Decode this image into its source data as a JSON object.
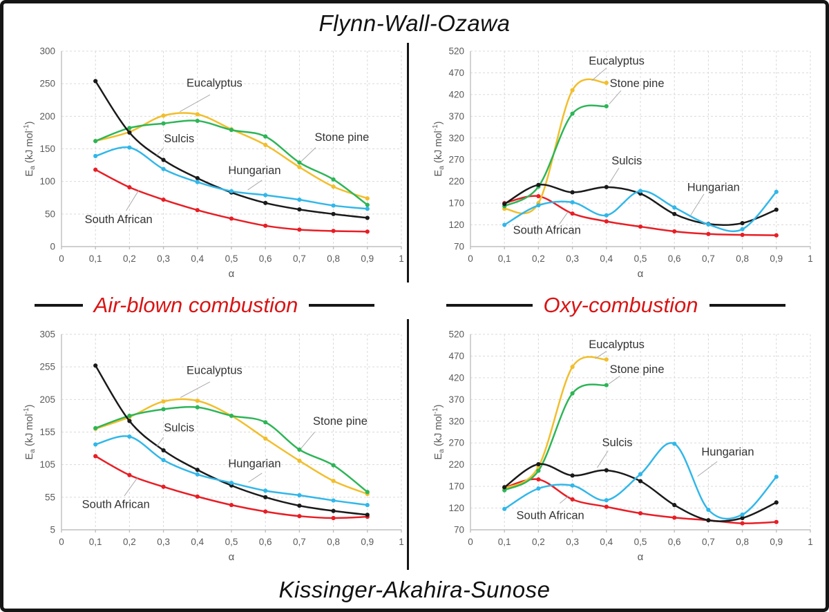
{
  "figure": {
    "top_title": "Flynn-Wall-Ozawa",
    "bottom_title": "Kissinger-Akahira-Sunose",
    "left_condition_label": "Air-blown combustion",
    "right_condition_label": "Oxy-combustion"
  },
  "colors": {
    "border": "#161616",
    "condition_label_red": "#d91414",
    "title_black": "#111111"
  },
  "series_colors": {
    "Eucalyptus": "#F2BE2B",
    "Stone pine": "#2DB557",
    "Sulcis": "#1A1A1A",
    "Hungarian": "#31B7E9",
    "South African": "#E81E25"
  },
  "chart_style": {
    "grid_color": "#d9d9d9",
    "axis_color": "#bfbfbf",
    "tick_color": "#595959",
    "annotation_color": "#333333",
    "leader_color": "#ababab",
    "line_width": 2.5,
    "marker_radius": 3.1
  },
  "chart_data": [
    {
      "id": "fwo-air",
      "type": "line",
      "method": "Flynn-Wall-Ozawa",
      "condition": "Air-blown combustion",
      "xlabel": "α",
      "ylabel_parts": {
        "pre": "E",
        "sub": "a",
        "mid": " (kJ mol",
        "sup": "-1",
        "post": ")"
      },
      "x": [
        0.1,
        0.2,
        0.3,
        0.4,
        0.5,
        0.6,
        0.7,
        0.8,
        0.9
      ],
      "ylim": [
        0,
        300
      ],
      "yticks": [
        0,
        50,
        100,
        150,
        200,
        250,
        300
      ],
      "xticks": {
        "values": [
          0,
          0.1,
          0.2,
          0.3,
          0.4,
          0.5,
          0.6,
          0.7,
          0.8,
          0.9,
          1
        ],
        "labels": [
          "0",
          "0,1",
          "0,2",
          "0,3",
          "0,4",
          "0,5",
          "0,6",
          "0,7",
          "0,8",
          "0,9",
          "1"
        ]
      },
      "series": [
        {
          "name": "South African",
          "values": [
            118,
            91,
            72,
            56,
            43,
            32,
            26,
            24,
            23
          ]
        },
        {
          "name": "Eucalyptus",
          "values": [
            162,
            176,
            201,
            203,
            180,
            156,
            122,
            92,
            74
          ]
        },
        {
          "name": "Stone pine",
          "values": [
            162,
            182,
            189,
            193,
            179,
            169,
            129,
            103,
            64
          ]
        },
        {
          "name": "Sulcis",
          "values": [
            254,
            175,
            133,
            105,
            83,
            67,
            57,
            50,
            44
          ]
        },
        {
          "name": "Hungarian",
          "values": [
            139,
            152,
            119,
            99,
            85,
            79,
            72,
            63,
            58
          ]
        }
      ],
      "annotations": [
        {
          "text": "Eucalyptus",
          "tx": 0.45,
          "ty": 251,
          "line": [
            0.437,
            233,
            0.348,
            207
          ]
        },
        {
          "text": "Sulcis",
          "tx": 0.346,
          "ty": 166,
          "line": [
            0.3,
            151,
            0.28,
            140
          ]
        },
        {
          "text": "Hungarian",
          "tx": 0.568,
          "ty": 117,
          "line": [
            0.59,
            102,
            0.548,
            87
          ]
        },
        {
          "text": "Stone pine",
          "tx": 0.825,
          "ty": 168,
          "line": [
            0.748,
            152,
            0.706,
            131
          ]
        },
        {
          "text": "South African",
          "tx": 0.168,
          "ty": 42,
          "line": [
            0.19,
            55,
            0.228,
            87
          ]
        }
      ]
    },
    {
      "id": "fwo-oxy",
      "type": "line",
      "method": "Flynn-Wall-Ozawa",
      "condition": "Oxy-combustion",
      "xlabel": "α",
      "ylabel_parts": {
        "pre": "E",
        "sub": "a",
        "mid": " (kJ mol",
        "sup": "-1",
        "post": ")"
      },
      "x": [
        0.1,
        0.2,
        0.3,
        0.4,
        0.5,
        0.6,
        0.7,
        0.8,
        0.9
      ],
      "ylim": [
        70,
        520
      ],
      "yticks": [
        70,
        120,
        170,
        220,
        270,
        320,
        370,
        420,
        470,
        520
      ],
      "xticks": {
        "values": [
          0,
          0.1,
          0.2,
          0.3,
          0.4,
          0.5,
          0.6,
          0.7,
          0.8,
          0.9,
          1
        ],
        "labels": [
          "0",
          "0,1",
          "0,2",
          "0,3",
          "0,4",
          "0,5",
          "0,6",
          "0,7",
          "0,8",
          "0,9",
          "1"
        ]
      },
      "series": [
        {
          "name": "South African",
          "values": [
            170,
            186,
            146,
            128,
            116,
            105,
            99,
            97,
            96
          ]
        },
        {
          "name": "Eucalyptus",
          "values": [
            157,
            170,
            430,
            447
          ]
        },
        {
          "name": "Stone pine",
          "values": [
            163,
            208,
            376,
            393
          ]
        },
        {
          "name": "Sulcis",
          "values": [
            168,
            212,
            195,
            207,
            192,
            145,
            122,
            124,
            155
          ]
        },
        {
          "name": "Hungarian",
          "values": [
            120,
            165,
            172,
            142,
            198,
            160,
            121,
            110,
            196
          ]
        }
      ],
      "annotations": [
        {
          "text": "Eucalyptus",
          "tx": 0.43,
          "ty": 498,
          "line": [
            0.4,
            481,
            0.357,
            452
          ]
        },
        {
          "text": "Stone pine",
          "tx": 0.49,
          "ty": 446,
          "line": [
            0.443,
            429,
            0.408,
            398
          ]
        },
        {
          "text": "Sulcis",
          "tx": 0.46,
          "ty": 268,
          "line": [
            0.437,
            251,
            0.408,
            215
          ]
        },
        {
          "text": "Hungarian",
          "tx": 0.715,
          "ty": 207,
          "line": [
            0.687,
            191,
            0.647,
            141
          ]
        },
        {
          "text": "South African",
          "tx": 0.225,
          "ty": 108,
          "line": [
            0.262,
            122,
            0.287,
            150
          ]
        }
      ]
    },
    {
      "id": "kas-air",
      "type": "line",
      "method": "Kissinger-Akahira-Sunose",
      "condition": "Air-blown combustion",
      "xlabel": "α",
      "ylabel_parts": {
        "pre": "E",
        "sub": "a",
        "mid": " (kJ mol",
        "sup": "-1",
        "post": ")"
      },
      "x": [
        0.1,
        0.2,
        0.3,
        0.4,
        0.5,
        0.6,
        0.7,
        0.8,
        0.9
      ],
      "ylim": [
        5,
        305
      ],
      "yticks": [
        5,
        55,
        105,
        155,
        205,
        255,
        305
      ],
      "xticks": {
        "values": [
          0,
          0.1,
          0.2,
          0.3,
          0.4,
          0.5,
          0.6,
          0.7,
          0.8,
          0.9,
          1
        ],
        "labels": [
          "0",
          "0,1",
          "0,2",
          "0,3",
          "0,4",
          "0,5",
          "0,6",
          "0,7",
          "0,8",
          "0,9",
          "1"
        ]
      },
      "series": [
        {
          "name": "South African",
          "values": [
            118,
            89,
            71,
            56,
            43,
            33,
            26,
            23,
            25
          ]
        },
        {
          "name": "Eucalyptus",
          "values": [
            160,
            178,
            202,
            203,
            180,
            145,
            111,
            80,
            60
          ]
        },
        {
          "name": "Stone pine",
          "values": [
            161,
            180,
            190,
            193,
            180,
            170,
            128,
            104,
            63
          ]
        },
        {
          "name": "Sulcis",
          "values": [
            257,
            172,
            127,
            97,
            73,
            55,
            42,
            34,
            28
          ]
        },
        {
          "name": "Hungarian",
          "values": [
            136,
            148,
            112,
            90,
            77,
            65,
            58,
            50,
            43
          ]
        }
      ],
      "annotations": [
        {
          "text": "Eucalyptus",
          "tx": 0.45,
          "ty": 250,
          "line": [
            0.437,
            232,
            0.35,
            208
          ]
        },
        {
          "text": "Sulcis",
          "tx": 0.346,
          "ty": 162,
          "line": [
            0.3,
            147,
            0.28,
            133
          ]
        },
        {
          "text": "Hungarian",
          "tx": 0.568,
          "ty": 107,
          "line": [
            0.59,
            92,
            0.55,
            78
          ]
        },
        {
          "text": "Stone pine",
          "tx": 0.82,
          "ty": 172,
          "line": [
            0.745,
            155,
            0.705,
            130
          ]
        },
        {
          "text": "South African",
          "tx": 0.16,
          "ty": 44,
          "line": [
            0.185,
            57,
            0.225,
            86
          ]
        }
      ]
    },
    {
      "id": "kas-oxy",
      "type": "line",
      "method": "Kissinger-Akahira-Sunose",
      "condition": "Oxy-combustion",
      "xlabel": "α",
      "ylabel_parts": {
        "pre": "E",
        "sub": "a",
        "mid": " (kJ mol",
        "sup": "-1",
        "post": ")"
      },
      "x": [
        0.1,
        0.2,
        0.3,
        0.4,
        0.5,
        0.6,
        0.7,
        0.8,
        0.9
      ],
      "ylim": [
        70,
        520
      ],
      "yticks": [
        70,
        120,
        170,
        220,
        270,
        320,
        370,
        420,
        470,
        520
      ],
      "xticks": {
        "values": [
          0,
          0.1,
          0.2,
          0.3,
          0.4,
          0.5,
          0.6,
          0.7,
          0.8,
          0.9,
          1
        ],
        "labels": [
          "0",
          "0,1",
          "0,2",
          "0,3",
          "0,4",
          "0,5",
          "0,6",
          "0,7",
          "0,8",
          "0,9",
          "1"
        ]
      },
      "series": [
        {
          "name": "South African",
          "values": [
            167,
            186,
            140,
            123,
            108,
            98,
            92,
            85,
            88
          ]
        },
        {
          "name": "Eucalyptus",
          "values": [
            165,
            215,
            445,
            462
          ]
        },
        {
          "name": "Stone pine",
          "values": [
            161,
            206,
            384,
            403
          ]
        },
        {
          "name": "Sulcis",
          "values": [
            168,
            221,
            195,
            207,
            182,
            127,
            92,
            97,
            133
          ]
        },
        {
          "name": "Hungarian",
          "values": [
            118,
            165,
            172,
            138,
            198,
            268,
            116,
            105,
            192
          ]
        }
      ],
      "annotations": [
        {
          "text": "Eucalyptus",
          "tx": 0.43,
          "ty": 497,
          "line": [
            0.4,
            481,
            0.367,
            464
          ]
        },
        {
          "text": "Stone pine",
          "tx": 0.49,
          "ty": 440,
          "line": [
            0.44,
            424,
            0.407,
            406
          ]
        },
        {
          "text": "Sulcis",
          "tx": 0.432,
          "ty": 271,
          "line": [
            0.405,
            252,
            0.373,
            213
          ]
        },
        {
          "text": "Hungarian",
          "tx": 0.757,
          "ty": 250,
          "line": [
            0.726,
            227,
            0.668,
            193
          ]
        },
        {
          "text": "South African",
          "tx": 0.235,
          "ty": 103,
          "line": [
            0.263,
            131,
            0.289,
            148
          ]
        }
      ]
    }
  ]
}
